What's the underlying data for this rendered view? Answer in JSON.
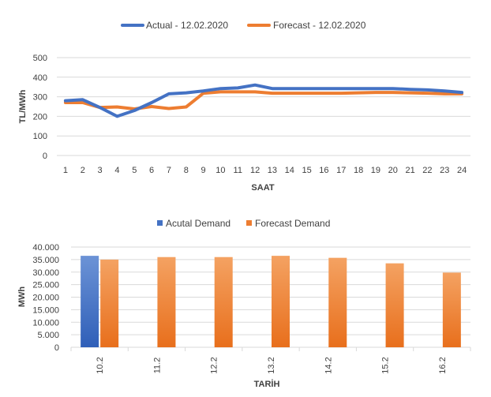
{
  "chart_data": [
    {
      "type": "line",
      "xlabel": "SAAT",
      "ylabel": "TL/MWh",
      "ylim": [
        0,
        500
      ],
      "yticks": [
        "0",
        "100",
        "200",
        "300",
        "400",
        "500"
      ],
      "categories": [
        "1",
        "2",
        "3",
        "4",
        "5",
        "6",
        "7",
        "8",
        "9",
        "10",
        "11",
        "12",
        "13",
        "14",
        "15",
        "16",
        "17",
        "18",
        "19",
        "20",
        "21",
        "22",
        "23",
        "24"
      ],
      "grid": true,
      "legend": "top",
      "series": [
        {
          "name": "Actual - 12.02.2020",
          "color": "#4472C4",
          "values": [
            280,
            285,
            245,
            200,
            230,
            270,
            315,
            320,
            330,
            342,
            345,
            360,
            342,
            342,
            342,
            342,
            342,
            342,
            342,
            342,
            338,
            335,
            330,
            322
          ]
        },
        {
          "name": "Forecast - 12.02.2020",
          "color": "#ED7D31",
          "values": [
            270,
            270,
            245,
            248,
            238,
            250,
            240,
            248,
            318,
            325,
            325,
            325,
            318,
            318,
            318,
            318,
            318,
            320,
            322,
            322,
            320,
            318,
            315,
            315
          ]
        }
      ]
    },
    {
      "type": "bar",
      "xlabel": "TARİH",
      "ylabel": "MWh",
      "ylim": [
        0,
        40000
      ],
      "yticks": [
        "0",
        "5.000",
        "10.000",
        "15.000",
        "20.000",
        "25.000",
        "30.000",
        "35.000",
        "40.000"
      ],
      "categories": [
        "10.2",
        "11.2",
        "12.2",
        "13.2",
        "14.2",
        "15.2",
        "16.2"
      ],
      "grid": true,
      "legend": "top",
      "series": [
        {
          "name": "Acutal Demand",
          "color": "#4472C4",
          "values": [
            36500,
            null,
            null,
            null,
            null,
            null,
            null
          ]
        },
        {
          "name": "Forecast Demand",
          "color": "#ED7D31",
          "values": [
            35000,
            36000,
            36000,
            36500,
            35700,
            33500,
            29800
          ]
        }
      ]
    }
  ]
}
